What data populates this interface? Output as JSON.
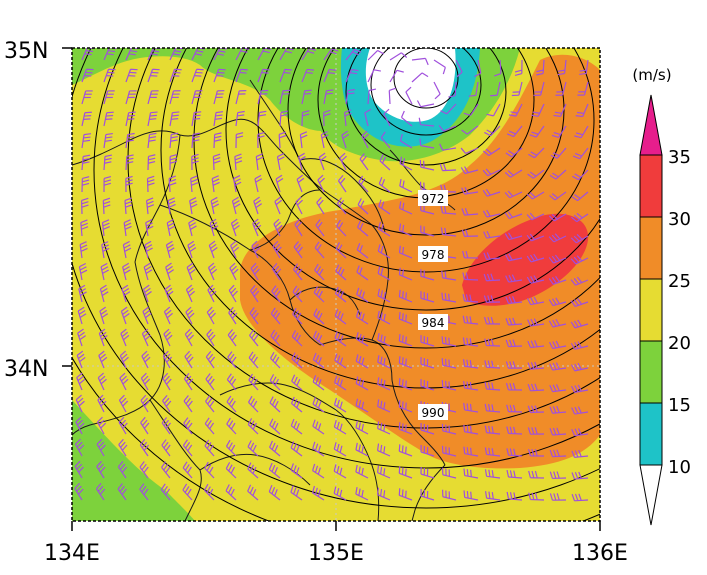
{
  "map": {
    "lat_labels": [
      "35N",
      "34N"
    ],
    "lon_labels": [
      "134E",
      "135E",
      "136E"
    ],
    "extent": {
      "lon": [
        134,
        136
      ],
      "lat": [
        33.4,
        35
      ]
    }
  },
  "colorbar": {
    "unit": "(m/s)",
    "tick_labels": [
      "35",
      "30",
      "25",
      "20",
      "15",
      "10"
    ],
    "levels": [
      10,
      15,
      20,
      25,
      30,
      35
    ],
    "colors": {
      "below_10": "#ffffff",
      "10-15": "#1ec3c8",
      "15-20": "#7dd23c",
      "20-25": "#e6dc32",
      "25-30": "#f08c28",
      "30-35": "#f03c3c",
      "above_35": "#e61e8c"
    }
  },
  "pressure_contours": {
    "unit_labels": [
      "972",
      "978",
      "984",
      "990"
    ],
    "center": {
      "lon": 135.35,
      "lat": 34.8
    }
  },
  "wind_barbs": {
    "color": "#a050dc"
  },
  "border_color": "#1a1a1a"
}
